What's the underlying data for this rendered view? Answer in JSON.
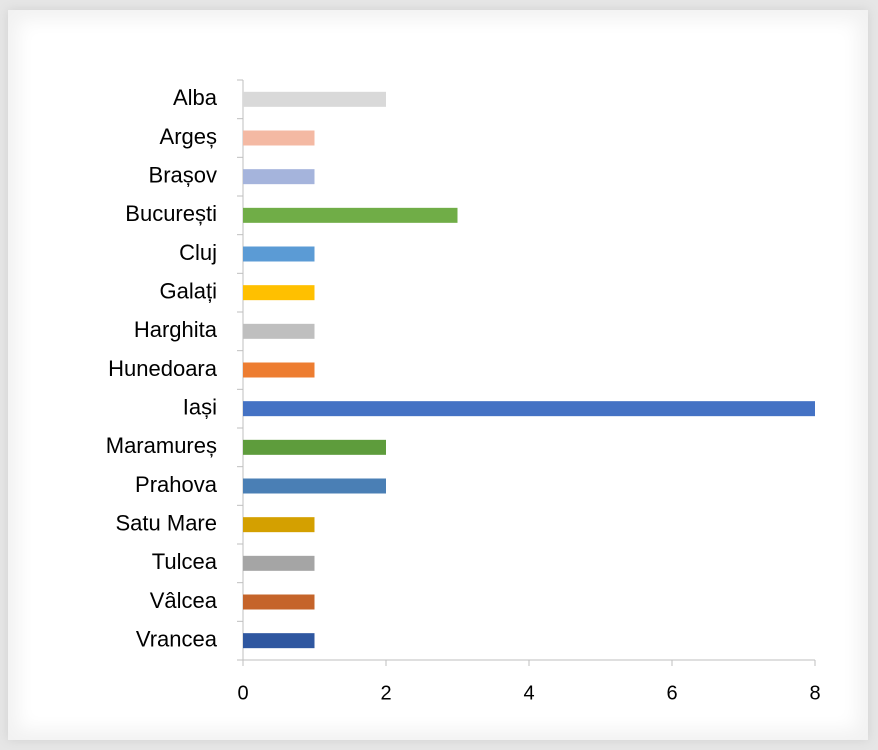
{
  "chart_data": {
    "type": "bar",
    "orientation": "horizontal",
    "categories": [
      "Alba",
      "Argeș",
      "Brașov",
      "București",
      "Cluj",
      "Galați",
      "Harghita",
      "Hunedoara",
      "Iași",
      "Maramureș",
      "Prahova",
      "Satu Mare",
      "Tulcea",
      "Vâlcea",
      "Vrancea"
    ],
    "values": [
      2,
      1,
      1,
      3,
      1,
      1,
      1,
      1,
      8,
      2,
      2,
      1,
      1,
      1,
      1
    ],
    "colors": [
      "#d9d9d9",
      "#f4b9a3",
      "#a5b4dc",
      "#70ad47",
      "#5b9bd5",
      "#ffc000",
      "#bfbfbf",
      "#ed7d31",
      "#4472c4",
      "#5e9c3c",
      "#4a7fb5",
      "#d4a000",
      "#a5a5a5",
      "#c5642a",
      "#2f57a0"
    ],
    "xlim": [
      0,
      8
    ],
    "xticks": [
      0,
      2,
      4,
      6,
      8
    ],
    "grid": false
  }
}
